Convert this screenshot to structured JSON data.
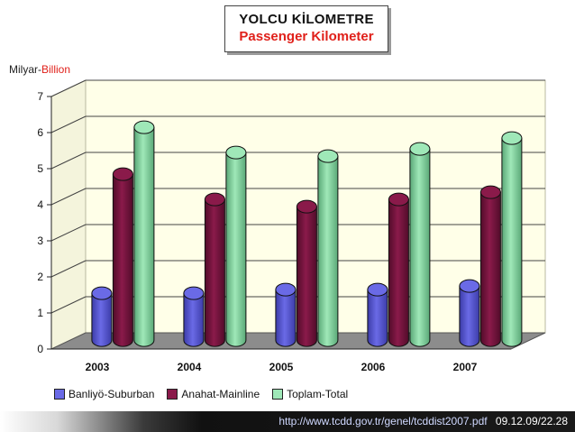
{
  "title": {
    "line1": "YOLCU KİLOMETRE",
    "line2": "Passenger Kilometer"
  },
  "unit": {
    "tr": "Milyar-",
    "en": "Billion"
  },
  "footer": {
    "url": "http://www.tcdd.gov.tr/genel/tcddist2007.pdf",
    "datetime": "09.12.09/22.28"
  },
  "colors": {
    "suburban": "#6a6ae6",
    "mainline": "#8a1a4a",
    "total": "#9fe8b8",
    "floor": "#8c8c8c",
    "wall": "#ffffe8"
  },
  "chart_data": {
    "type": "bar",
    "style": "3d-cylinder",
    "categories": [
      "2003",
      "2004",
      "2005",
      "2006",
      "2007"
    ],
    "series": [
      {
        "name": "Banliyö-Suburban",
        "values": [
          1.3,
          1.3,
          1.4,
          1.4,
          1.5
        ]
      },
      {
        "name": "Anahat-Mainline",
        "values": [
          4.6,
          3.9,
          3.7,
          3.9,
          4.1
        ]
      },
      {
        "name": "Toplam-Total",
        "values": [
          5.9,
          5.2,
          5.1,
          5.3,
          5.6
        ]
      }
    ],
    "yticks": [
      "0",
      "1",
      "2",
      "3",
      "4",
      "5",
      "6",
      "7"
    ],
    "ylim": [
      0,
      7
    ],
    "legend": "bottom",
    "grid": true
  }
}
